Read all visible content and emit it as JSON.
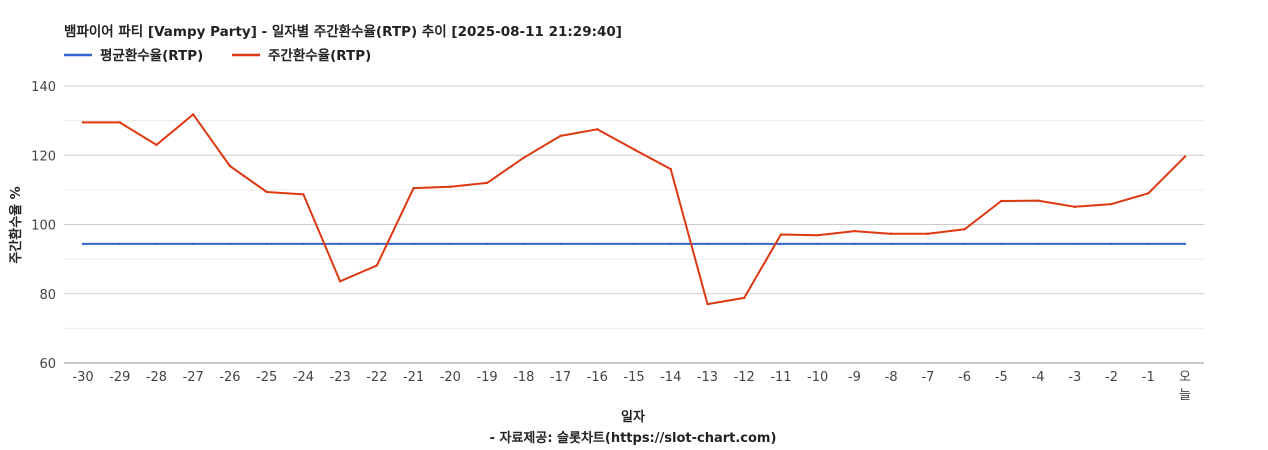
{
  "chart_data": {
    "type": "line",
    "title": "뱀파이어 파티 [Vampy Party] - 일자별 주간환수율(RTP) 추이 [2025-08-11 21:29:40]",
    "xlabel": "일자",
    "ylabel": "주간환수율 %",
    "source": "- 자료제공: 슬롯차트(https://slot-chart.com)",
    "ylim": [
      60,
      140
    ],
    "yticks": [
      60,
      80,
      100,
      120,
      140
    ],
    "grid": true,
    "legend_position": "top-left",
    "categories": [
      "-30",
      "-29",
      "-28",
      "-27",
      "-26",
      "-25",
      "-24",
      "-23",
      "-22",
      "-21",
      "-20",
      "-19",
      "-18",
      "-17",
      "-16",
      "-15",
      "-14",
      "-13",
      "-12",
      "-11",
      "-10",
      "-9",
      "-8",
      "-7",
      "-6",
      "-5",
      "-4",
      "-3",
      "-2",
      "-1",
      "오늘"
    ],
    "series": [
      {
        "name": "평균환수율(RTP)",
        "color": "#3366cc",
        "values": [
          94.4,
          94.4,
          94.4,
          94.4,
          94.4,
          94.4,
          94.4,
          94.4,
          94.4,
          94.4,
          94.4,
          94.4,
          94.4,
          94.4,
          94.4,
          94.4,
          94.4,
          94.4,
          94.4,
          94.4,
          94.4,
          94.4,
          94.4,
          94.4,
          94.4,
          94.4,
          94.4,
          94.4,
          94.4,
          94.4,
          94.4
        ]
      },
      {
        "name": "주간환수율(RTP)",
        "color": "#dc3912",
        "values": [
          129.5,
          129.5,
          123.0,
          131.8,
          116.9,
          109.4,
          108.7,
          83.6,
          88.2,
          110.5,
          110.9,
          112.0,
          119.3,
          125.6,
          127.5,
          121.7,
          116.0,
          77.0,
          78.8,
          97.1,
          96.9,
          98.1,
          97.3,
          97.3,
          98.6,
          106.8,
          106.9,
          105.1,
          105.9,
          109.0,
          119.6
        ]
      }
    ]
  }
}
